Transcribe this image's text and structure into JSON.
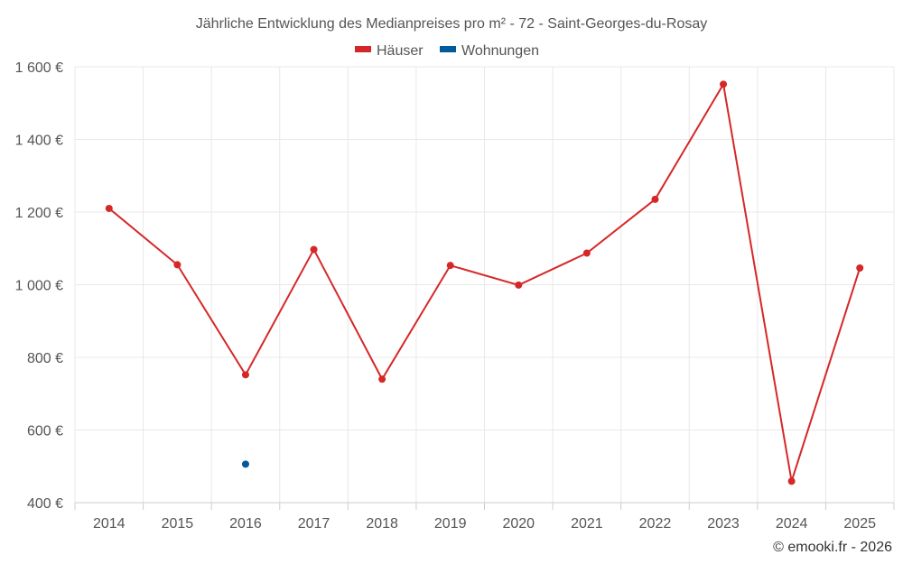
{
  "chart_data": {
    "type": "line",
    "title": "Jährliche Entwicklung des Medianpreises pro m² - 72 - Saint-Georges-du-Rosay",
    "xlabel": "",
    "ylabel": "",
    "categories": [
      "2014",
      "2015",
      "2016",
      "2017",
      "2018",
      "2019",
      "2020",
      "2021",
      "2022",
      "2023",
      "2024",
      "2025"
    ],
    "ylim": [
      400,
      1600
    ],
    "yticks": [
      400,
      600,
      800,
      1000,
      1200,
      1400,
      1600
    ],
    "ytick_labels": [
      "400 €",
      "600 €",
      "800 €",
      "1 000 €",
      "1 200 €",
      "1 400 €",
      "1 600 €"
    ],
    "grid": true,
    "legend_position": "top-center",
    "series": [
      {
        "name": "Häuser",
        "color": "#d62728",
        "values": [
          1210,
          1055,
          752,
          1097,
          740,
          1053,
          999,
          1087,
          1235,
          1552,
          459,
          1046
        ]
      },
      {
        "name": "Wohnungen",
        "color": "#005a9c",
        "values": [
          null,
          null,
          506,
          null,
          null,
          null,
          null,
          null,
          null,
          null,
          null,
          null
        ]
      }
    ]
  },
  "credit": "© emooki.fr - 2026"
}
